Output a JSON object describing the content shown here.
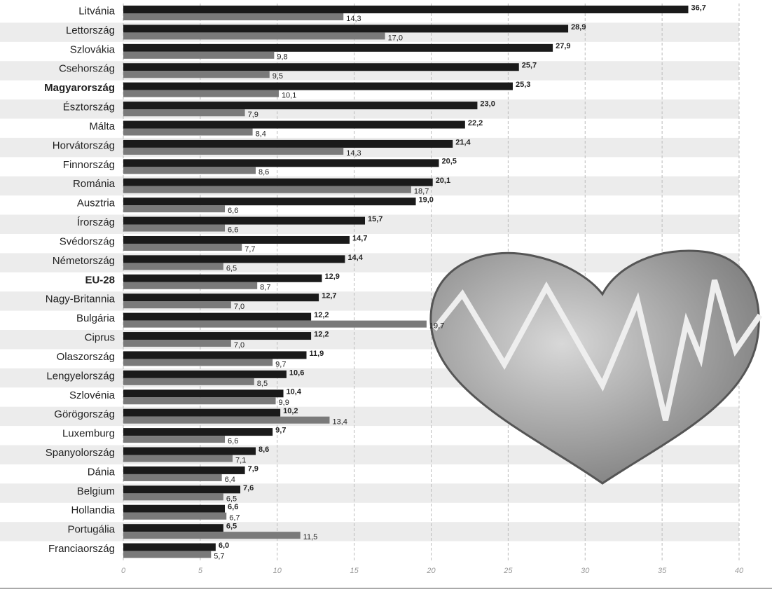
{
  "chart_data": {
    "type": "bar",
    "orientation": "horizontal",
    "categories": [
      "Litvánia",
      "Lettország",
      "Szlovákia",
      "Csehország",
      "Magyarország",
      "Észtország",
      "Málta",
      "Horvátország",
      "Finnország",
      "Románia",
      "Ausztria",
      "Írország",
      "Svédország",
      "Németország",
      "EU-28",
      "Nagy-Britannia",
      "Bulgária",
      "Ciprus",
      "Olaszország",
      "Lengyelország",
      "Szlovénia",
      "Görögország",
      "Luxemburg",
      "Spanyolország",
      "Dánia",
      "Belgium",
      "Hollandia",
      "Portugália",
      "Franciaország"
    ],
    "series": [
      {
        "color": "#1a1a1a",
        "values": [
          36.7,
          28.9,
          27.9,
          25.7,
          25.3,
          23.0,
          22.2,
          21.4,
          20.5,
          20.1,
          19.0,
          15.7,
          14.7,
          14.4,
          12.9,
          12.7,
          12.2,
          12.2,
          11.9,
          10.6,
          10.4,
          10.2,
          9.7,
          8.6,
          7.9,
          7.6,
          6.6,
          6.5,
          6.0
        ],
        "value_labels": [
          "36,7",
          "28,9",
          "27,9",
          "25,7",
          "25,3",
          "23,0",
          "22,2",
          "21,4",
          "20,5",
          "20,1",
          "19,0",
          "15,7",
          "14,7",
          "14,4",
          "12,9",
          "12,7",
          "12,2",
          "12,2",
          "11,9",
          "10,6",
          "10,4",
          "10,2",
          "9,7",
          "8,6",
          "7,9",
          "7,6",
          "6,6",
          "6,5",
          "6,0"
        ]
      },
      {
        "color": "#7a7a7a",
        "values": [
          14.3,
          17.0,
          9.8,
          9.5,
          10.1,
          7.9,
          8.4,
          14.3,
          8.6,
          18.7,
          6.6,
          6.6,
          7.7,
          6.5,
          8.7,
          7.0,
          19.7,
          7.0,
          9.7,
          8.5,
          9.9,
          13.4,
          6.6,
          7.1,
          6.4,
          6.5,
          6.7,
          11.5,
          5.7
        ],
        "value_labels": [
          "14,3",
          "17,0",
          "9,8",
          "9,5",
          "10,1",
          "7,9",
          "8,4",
          "14,3",
          "8,6",
          "18,7",
          "6,6",
          "6,6",
          "7,7",
          "6,5",
          "8,7",
          "7,0",
          "19,7",
          "7,0",
          "9,7",
          "8,5",
          "9,9",
          "13,4",
          "6,6",
          "7,1",
          "6,4",
          "6,5",
          "6,7",
          "11,5",
          "5,7"
        ]
      }
    ],
    "xlim": [
      0,
      40
    ],
    "xticks": [
      0,
      5,
      10,
      15,
      20,
      25,
      30,
      35,
      40
    ],
    "grid": true
  }
}
